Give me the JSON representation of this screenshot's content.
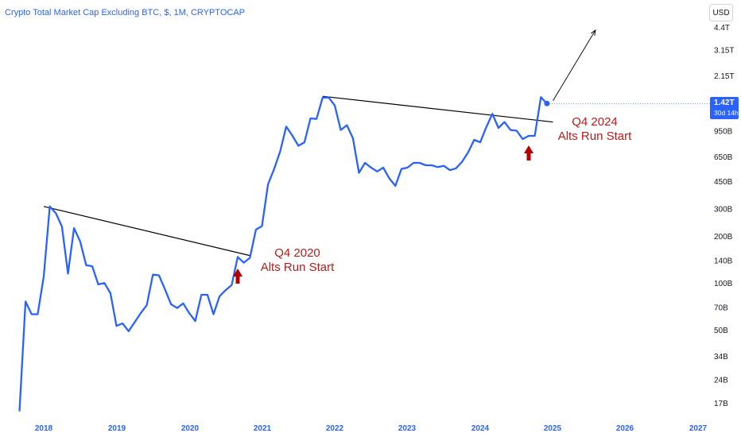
{
  "header": {
    "title": "Crypto Total Market Cap Excluding BTC, $, 1M, CRYPTOCAP",
    "currency_button": "USD"
  },
  "price_badge": {
    "value": "1.42T",
    "countdown": "30d 14h"
  },
  "colors": {
    "series": "#2962ff",
    "trendline": "#000000",
    "annotation": "#b71c1c",
    "axis_text": "#131722"
  },
  "chart_data": {
    "type": "line",
    "scale": "log",
    "title": "Crypto Total Market Cap Excluding BTC, $, 1M, CRYPTOCAP",
    "x_ticks": [
      "2018",
      "2019",
      "2020",
      "2021",
      "2022",
      "2023",
      "2024",
      "2025",
      "2026",
      "2027"
    ],
    "y_ticks": [
      {
        "label": "4.4T",
        "value": 4400000000000
      },
      {
        "label": "3.15T",
        "value": 3150000000000
      },
      {
        "label": "2.15T",
        "value": 2150000000000
      },
      {
        "label": "1.42T",
        "value": 1420000000000
      },
      {
        "label": "950B",
        "value": 950000000000
      },
      {
        "label": "650B",
        "value": 650000000000
      },
      {
        "label": "450B",
        "value": 450000000000
      },
      {
        "label": "300B",
        "value": 300000000000
      },
      {
        "label": "200B",
        "value": 200000000000
      },
      {
        "label": "140B",
        "value": 140000000000
      },
      {
        "label": "100B",
        "value": 100000000000
      },
      {
        "label": "70B",
        "value": 70000000000
      },
      {
        "label": "50B",
        "value": 50000000000
      },
      {
        "label": "34B",
        "value": 34000000000
      },
      {
        "label": "24B",
        "value": 24000000000
      },
      {
        "label": "17B",
        "value": 17000000000
      }
    ],
    "ylim": [
      14000000000,
      5000000000000
    ],
    "xlim": [
      "2017-08",
      "2027-01"
    ],
    "series": [
      {
        "x": [
          "2017-09",
          "2017-10",
          "2017-11",
          "2017-12",
          "2018-01",
          "2018-02",
          "2018-03",
          "2018-04",
          "2018-05",
          "2018-06",
          "2018-07",
          "2018-08",
          "2018-09",
          "2018-10",
          "2018-11",
          "2018-12",
          "2019-01",
          "2019-02",
          "2019-03",
          "2019-04",
          "2019-05",
          "2019-06",
          "2019-07",
          "2019-08",
          "2019-09",
          "2019-10",
          "2019-11",
          "2019-12",
          "2020-01",
          "2020-02",
          "2020-03",
          "2020-04",
          "2020-05",
          "2020-06",
          "2020-07",
          "2020-08",
          "2020-09",
          "2020-10",
          "2020-11",
          "2020-12",
          "2021-01",
          "2021-02",
          "2021-03",
          "2021-04",
          "2021-05",
          "2021-06",
          "2021-07",
          "2021-08",
          "2021-09",
          "2021-10",
          "2021-11",
          "2021-12",
          "2022-01",
          "2022-02",
          "2022-03",
          "2022-04",
          "2022-05",
          "2022-06",
          "2022-07",
          "2022-08",
          "2022-09",
          "2022-10",
          "2022-11",
          "2022-12",
          "2023-01",
          "2023-02",
          "2023-03",
          "2023-04",
          "2023-05",
          "2023-06",
          "2023-07",
          "2023-08",
          "2023-09",
          "2023-10",
          "2023-11",
          "2023-12",
          "2024-01",
          "2024-02",
          "2024-03",
          "2024-04",
          "2024-05",
          "2024-06",
          "2024-07",
          "2024-08",
          "2024-09",
          "2024-10",
          "2024-11",
          "2024-12"
        ],
        "values": [
          15,
          76,
          63,
          63,
          110,
          310,
          280,
          230,
          115,
          225,
          185,
          130,
          128,
          98,
          100,
          86,
          53,
          55,
          49,
          56,
          64,
          72,
          113,
          112,
          91,
          73,
          69,
          74,
          64,
          57,
          84,
          84,
          63,
          82,
          90,
          97,
          147,
          135,
          145,
          220,
          232,
          430,
          540,
          700,
          1010,
          885,
          760,
          800,
          1140,
          1130,
          1550,
          1550,
          1380,
          960,
          1030,
          850,
          510,
          590,
          550,
          520,
          550,
          470,
          420,
          540,
          550,
          590,
          590,
          570,
          570,
          555,
          565,
          530,
          545,
          600,
          690,
          830,
          800,
          1000,
          1220,
          990,
          1080,
          960,
          950,
          840,
          880,
          880,
          1560,
          1420
        ],
        "unit": "B"
      }
    ],
    "trendlines": [
      {
        "from": {
          "x": "2018-01",
          "y": 310
        },
        "to": {
          "x": "2020-11",
          "y": 150
        }
      },
      {
        "from": {
          "x": "2021-11",
          "y": 1580
        },
        "to": {
          "x": "2025-01",
          "y": 1080
        }
      }
    ],
    "projection_arrow": {
      "from": {
        "x": "2025-01",
        "y": 1480
      },
      "to": {
        "x": "2025-08",
        "y": 4200
      }
    },
    "annotations": [
      {
        "line1": "Q4 2020",
        "line2": "Alts Run Start",
        "at": {
          "x": "2020-09",
          "y": 110
        }
      },
      {
        "line1": "Q4 2024",
        "line2": "Alts Run Start",
        "at": {
          "x": "2024-09",
          "y": 680
        }
      }
    ]
  }
}
